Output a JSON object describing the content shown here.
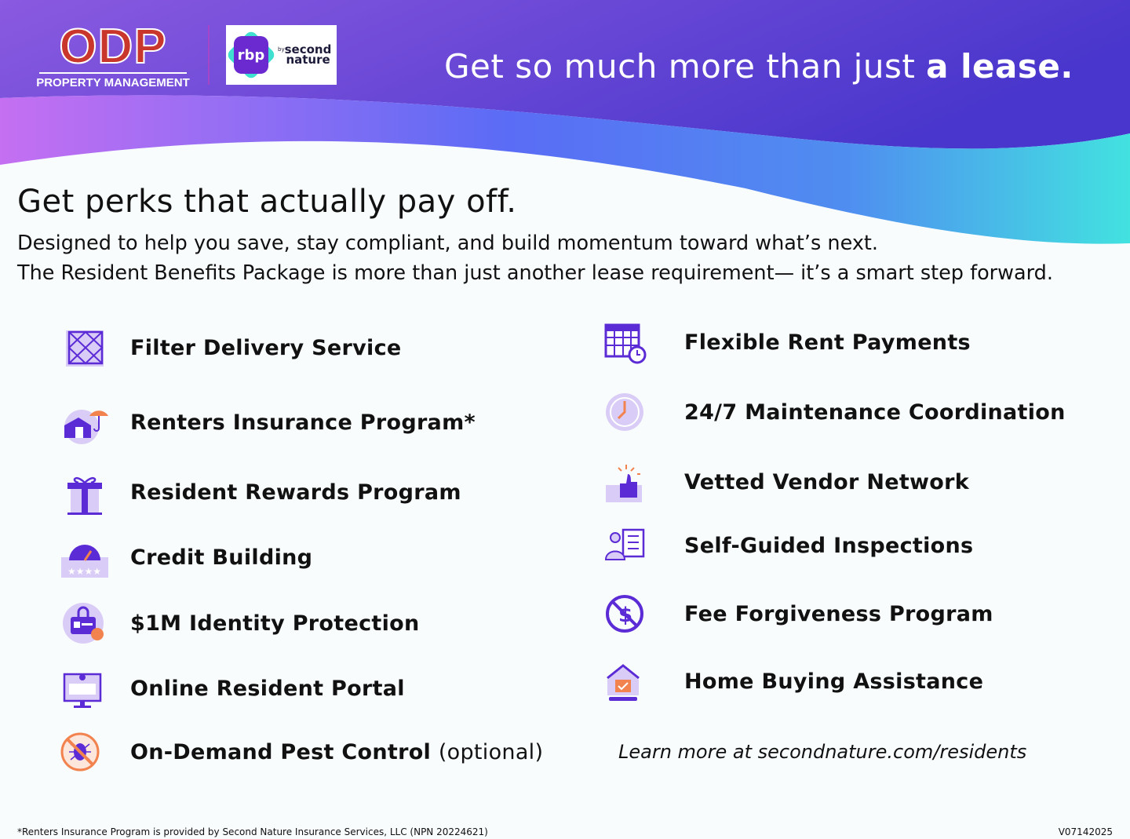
{
  "header": {
    "logo_odp": {
      "mark": "ODP",
      "subtitle": "PROPERTY MANAGEMENT"
    },
    "logo_rbp": {
      "mark": "rbp",
      "by": "by",
      "brand_line1": "second",
      "brand_line2": "nature"
    },
    "tagline_regular": "Get so much more than just ",
    "tagline_bold": "a lease."
  },
  "intro": {
    "heading": "Get perks that actually pay off.",
    "line1": "Designed to help you save, stay compliant, and build momentum toward what’s next.",
    "line2": "The Resident Benefits Package is more than just another lease requirement— it’s a smart step forward."
  },
  "benefits_left": [
    {
      "label": "Filter Delivery Service",
      "icon": "air-filter-icon"
    },
    {
      "label": "Renters Insurance Program*",
      "icon": "umbrella-house-icon"
    },
    {
      "label": "Resident Rewards Program",
      "icon": "gift-icon"
    },
    {
      "label": "Credit Building",
      "icon": "credit-gauge-icon"
    },
    {
      "label": "$1M Identity Protection",
      "icon": "id-lock-icon"
    },
    {
      "label": "Online Resident Portal",
      "icon": "computer-portal-icon"
    },
    {
      "label": "On-Demand Pest Control",
      "optional": "(optional)",
      "icon": "no-bug-icon"
    }
  ],
  "benefits_right": [
    {
      "label": "Flexible Rent Payments",
      "icon": "calendar-clock-icon"
    },
    {
      "label": "24/7 Maintenance Coordination",
      "icon": "clock-icon"
    },
    {
      "label": "Vetted Vendor Network",
      "icon": "thumbs-up-icon"
    },
    {
      "label": "Self-Guided Inspections",
      "icon": "inspection-checklist-icon"
    },
    {
      "label": "Fee Forgiveness Program",
      "icon": "no-dollar-icon"
    },
    {
      "label": "Home Buying Assistance",
      "icon": "house-check-icon"
    }
  ],
  "learn_more": "Learn more at secondnature.com/residents",
  "footer": {
    "disclaimer": "*Renters Insurance Program is provided by Second Nature Insurance Services, LLC (NPN 20224621)",
    "version": "V07142025"
  },
  "colors": {
    "accent_purple": "#5b2bd6",
    "header_start": "#8a5ae0",
    "header_end": "#4b36cc",
    "odp_red": "#c9362c",
    "wave_cyan": "#42e0e0",
    "wave_pink": "#c56ff2"
  }
}
